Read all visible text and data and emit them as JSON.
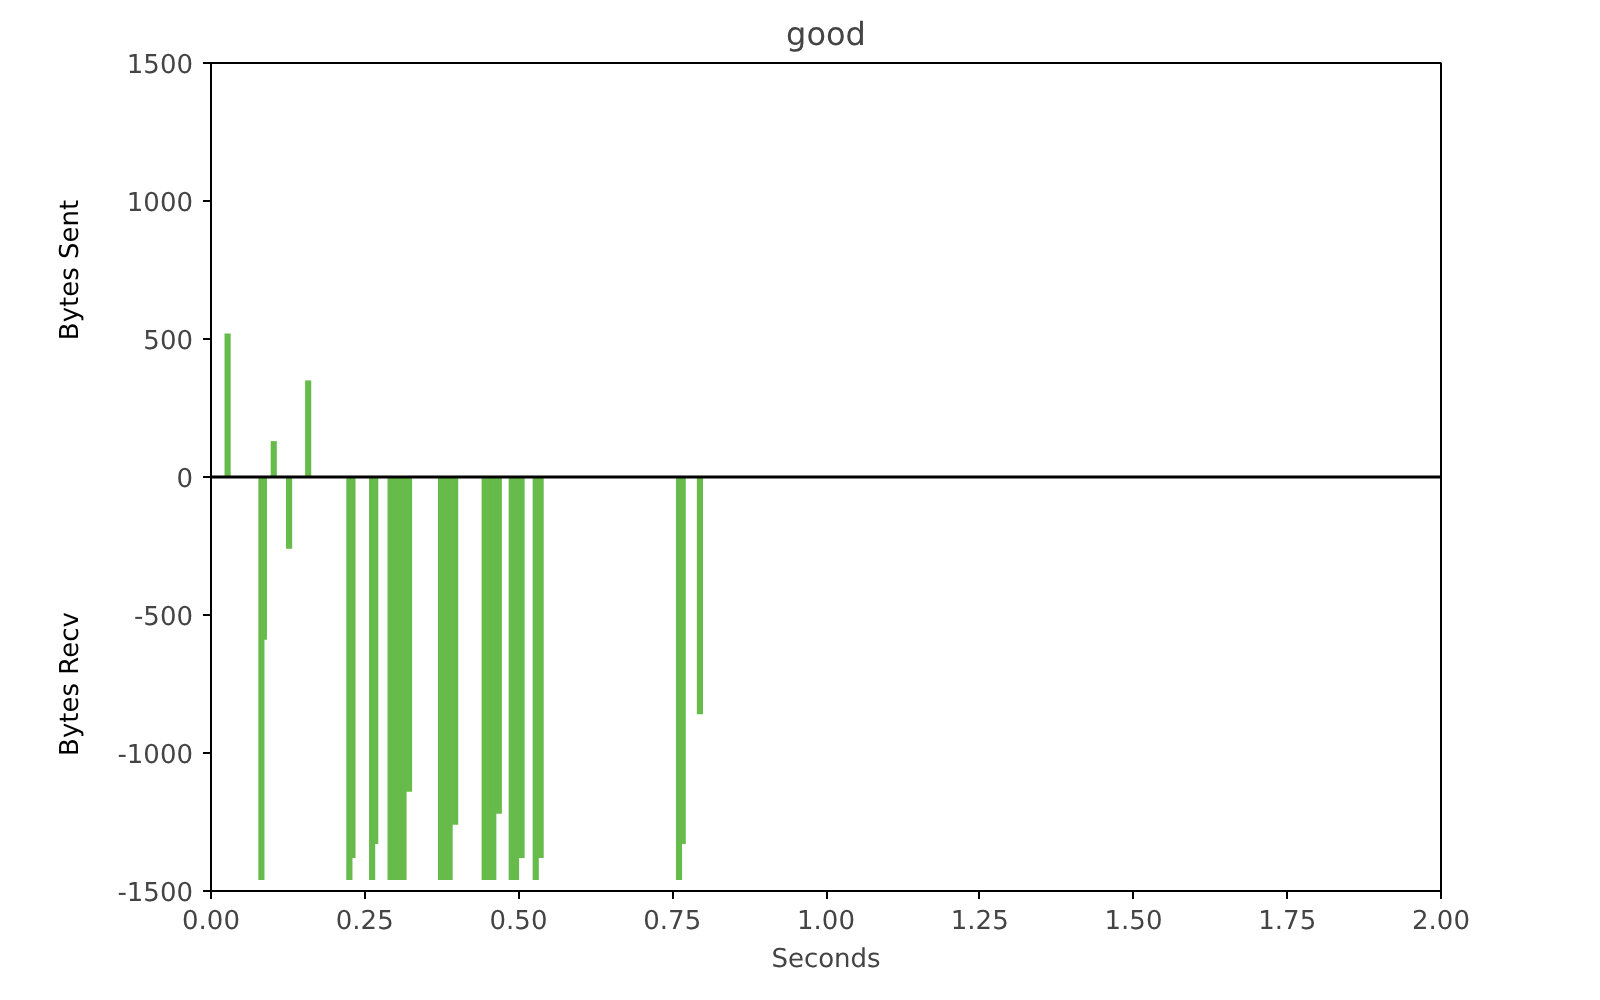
{
  "chart_data": {
    "type": "bar",
    "title": "good",
    "xlabel": "Seconds",
    "ylabel": "Bytes Sent",
    "annotations": [
      "Bytes Recv"
    ],
    "x": [
      0.027,
      0.082,
      0.086,
      0.102,
      0.127,
      0.158,
      0.225,
      0.23,
      0.262,
      0.267,
      0.292,
      0.299,
      0.306,
      0.313,
      0.322,
      0.374,
      0.381,
      0.388,
      0.397,
      0.445,
      0.452,
      0.459,
      0.468,
      0.489,
      0.496,
      0.505,
      0.528,
      0.536,
      0.761,
      0.767,
      0.795
    ],
    "values": [
      520,
      -1460,
      -590,
      130,
      -260,
      350,
      -1460,
      -1380,
      -1460,
      -1330,
      -1460,
      -1460,
      -1460,
      -1460,
      -1140,
      -1460,
      -1460,
      -1460,
      -1260,
      -1460,
      -1460,
      -1460,
      -1220,
      -1460,
      -1460,
      -1380,
      -1460,
      -1380,
      -1460,
      -1330,
      -860
    ],
    "color": "#66bb4a",
    "xlim": [
      0,
      2
    ],
    "ylim": [
      -1500,
      1500
    ],
    "xticks": [
      {
        "value": 0,
        "label": "0.00"
      },
      {
        "value": 0.25,
        "label": "0.25"
      },
      {
        "value": 0.5,
        "label": "0.50"
      },
      {
        "value": 0.75,
        "label": "0.75"
      },
      {
        "value": 1,
        "label": "1.00"
      },
      {
        "value": 1.25,
        "label": "1.25"
      },
      {
        "value": 1.5,
        "label": "1.50"
      },
      {
        "value": 1.75,
        "label": "1.75"
      },
      {
        "value": 2,
        "label": "2.00"
      }
    ],
    "yticks": [
      -1500,
      -1000,
      -500,
      0,
      500,
      1000,
      1500
    ],
    "ref_lines": [
      {
        "axis": "y",
        "value": 0,
        "color": "#000000"
      }
    ]
  }
}
